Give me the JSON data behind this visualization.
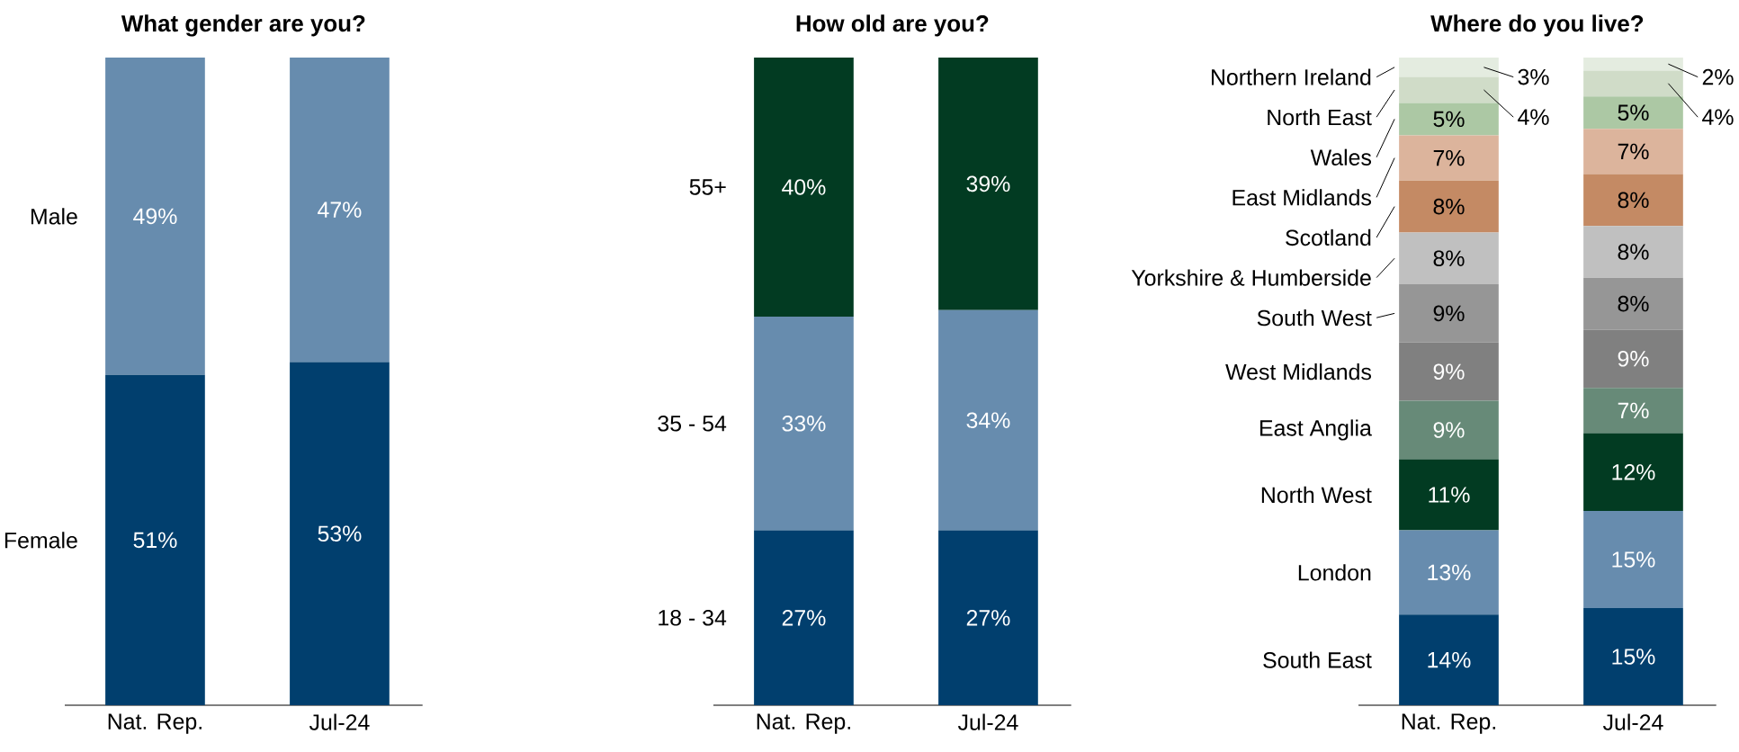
{
  "chart_data": [
    {
      "type": "bar",
      "title": "What gender are you?",
      "categories": [
        "Nat. Rep.",
        "Jul-24"
      ],
      "stacked": true,
      "ylim": [
        0,
        100
      ],
      "tick_labels": "x",
      "series": [
        {
          "name": "Female",
          "color": "#013f6e",
          "values": [
            51,
            53
          ],
          "value_labels": [
            "51%",
            "53%"
          ]
        },
        {
          "name": "Male",
          "color": "#678cae",
          "values": [
            49,
            47
          ],
          "value_labels": [
            "49%",
            "47%"
          ]
        }
      ]
    },
    {
      "type": "bar",
      "title": "How old are you?",
      "categories": [
        "Nat. Rep.",
        "Jul-24"
      ],
      "stacked": true,
      "ylim": [
        0,
        100
      ],
      "tick_labels": "x",
      "series": [
        {
          "name": "18 - 34",
          "color": "#013f6e",
          "values": [
            27,
            27
          ],
          "value_labels": [
            "27%",
            "27%"
          ]
        },
        {
          "name": "35 - 54",
          "color": "#678cae",
          "values": [
            33,
            34
          ],
          "value_labels": [
            "33%",
            "34%"
          ]
        },
        {
          "name": "55+",
          "color": "#023b22",
          "values": [
            40,
            39
          ],
          "value_labels": [
            "40%",
            "39%"
          ]
        }
      ]
    },
    {
      "type": "bar",
      "title": "Where do you live?",
      "categories": [
        "Nat. Rep.",
        "Jul-24"
      ],
      "stacked": true,
      "ylim": [
        0,
        100
      ],
      "tick_labels": "x",
      "series": [
        {
          "name": "South East",
          "color": "#013f6e",
          "values": [
            14,
            15
          ],
          "value_labels": [
            "14%",
            "15%"
          ]
        },
        {
          "name": "London",
          "color": "#678cae",
          "values": [
            13,
            15
          ],
          "value_labels": [
            "13%",
            "15%"
          ]
        },
        {
          "name": "North West",
          "color": "#023b22",
          "values": [
            11,
            12
          ],
          "value_labels": [
            "11%",
            "12%"
          ]
        },
        {
          "name": "East Anglia",
          "color": "#678a78",
          "values": [
            9,
            7
          ],
          "value_labels": [
            "9%",
            "7%"
          ]
        },
        {
          "name": "West Midlands",
          "color": "#808080",
          "values": [
            9,
            9
          ],
          "value_labels": [
            "9%",
            "9%"
          ]
        },
        {
          "name": "South West",
          "color": "#969696",
          "values": [
            9,
            8
          ],
          "value_labels": [
            "9%",
            "8%"
          ]
        },
        {
          "name": "Yorkshire & Humberside",
          "color": "#c0c0c0",
          "values": [
            8,
            8
          ],
          "value_labels": [
            "8%",
            "8%"
          ]
        },
        {
          "name": "Scotland",
          "color": "#c48a64",
          "values": [
            8,
            8
          ],
          "value_labels": [
            "8%",
            "8%"
          ]
        },
        {
          "name": "East Midlands",
          "color": "#dcb49c",
          "values": [
            7,
            7
          ],
          "value_labels": [
            "7%",
            "7%"
          ]
        },
        {
          "name": "Wales",
          "color": "#acc8a4",
          "values": [
            5,
            5
          ],
          "value_labels": [
            "5%",
            "5%"
          ]
        },
        {
          "name": "North East",
          "color": "#d0dcc8",
          "values": [
            4,
            4
          ],
          "value_labels": [
            "4%",
            "4%"
          ]
        },
        {
          "name": "Northern Ireland",
          "color": "#e4ece0",
          "values": [
            3,
            2
          ],
          "value_labels": [
            "3%",
            "2%"
          ]
        }
      ]
    }
  ]
}
